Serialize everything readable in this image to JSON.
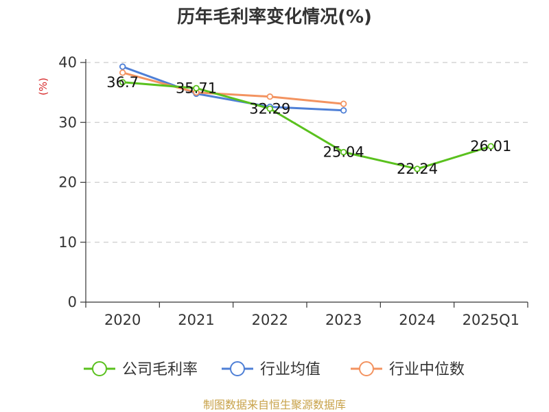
{
  "chart_data": {
    "type": "line",
    "title": "历年毛利率变化情况(%)",
    "ylabel": "(%)",
    "xlabel": "",
    "categories": [
      "2020",
      "2021",
      "2022",
      "2023",
      "2024",
      "2025Q1"
    ],
    "ylim": [
      0,
      40
    ],
    "yticks": [
      0,
      10,
      20,
      30,
      40
    ],
    "grid": true,
    "legend_position": "bottom",
    "series": [
      {
        "name": "公司毛利率",
        "color": "#5ac11e",
        "values": [
          36.7,
          35.71,
          32.29,
          25.04,
          22.24,
          26.01
        ],
        "labels": [
          "36.7",
          "35.71",
          "32.29",
          "25.04",
          "22.24",
          "26.01"
        ]
      },
      {
        "name": "行业均值",
        "color": "#4e7fd6",
        "values": [
          39.3,
          34.8,
          32.6,
          32.0,
          null,
          null
        ]
      },
      {
        "name": "行业中位数",
        "color": "#f39360",
        "values": [
          38.3,
          35.0,
          34.3,
          33.1,
          null,
          null
        ]
      }
    ]
  },
  "source_text": "制图数据来自恒生聚源数据库"
}
